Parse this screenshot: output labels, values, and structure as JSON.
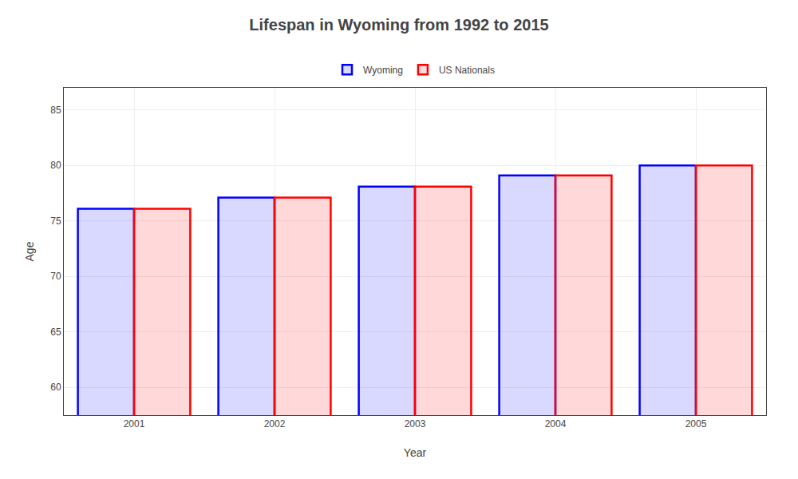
{
  "chart_data": {
    "type": "bar",
    "title": "Lifespan in Wyoming from 1992 to 2015",
    "xlabel": "Year",
    "ylabel": "Age",
    "categories": [
      "2001",
      "2002",
      "2003",
      "2004",
      "2005"
    ],
    "series": [
      {
        "name": "Wyoming",
        "color": "#0000ff",
        "values": [
          76.1,
          77.1,
          78.1,
          79.1,
          80.0
        ]
      },
      {
        "name": "US Nationals",
        "color": "#ff0000",
        "values": [
          76.1,
          77.1,
          78.1,
          79.1,
          80.0
        ]
      }
    ],
    "ylim": [
      57.5,
      87
    ],
    "yticks": [
      60,
      65,
      70,
      75,
      80,
      85
    ],
    "grid": true,
    "legend": "top"
  }
}
